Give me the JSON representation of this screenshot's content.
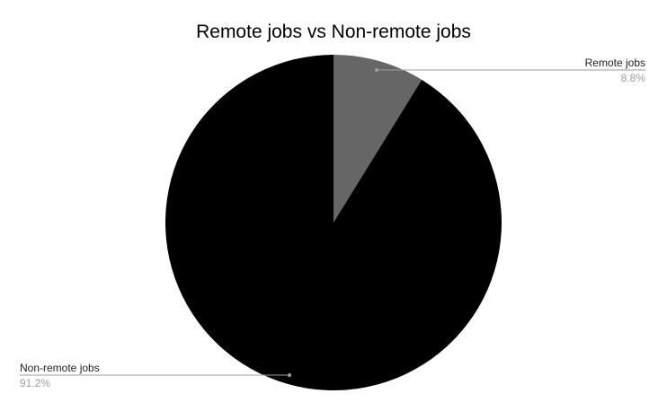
{
  "chart_data": {
    "type": "pie",
    "title": "Remote jobs vs Non-remote jobs",
    "start_angle_deg": 0,
    "direction": "clockwise",
    "slices": [
      {
        "label": "Remote jobs",
        "value": 8.8,
        "display": "8.8%",
        "color": "#666666"
      },
      {
        "label": "Non-remote jobs",
        "value": 91.2,
        "display": "91.2%",
        "color": "#000000"
      }
    ]
  }
}
